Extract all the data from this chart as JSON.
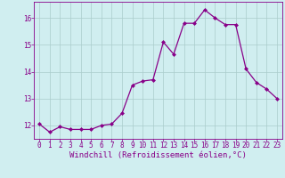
{
  "x": [
    0,
    1,
    2,
    3,
    4,
    5,
    6,
    7,
    8,
    9,
    10,
    11,
    12,
    13,
    14,
    15,
    16,
    17,
    18,
    19,
    20,
    21,
    22,
    23
  ],
  "y": [
    12.05,
    11.75,
    11.95,
    11.85,
    11.85,
    11.85,
    12.0,
    12.05,
    12.45,
    13.5,
    13.65,
    13.7,
    15.1,
    14.65,
    15.8,
    15.8,
    16.3,
    16.0,
    15.75,
    15.75,
    14.1,
    13.6,
    13.35,
    13.0
  ],
  "line_color": "#880088",
  "marker": "D",
  "marker_size": 2.0,
  "xlabel": "Windchill (Refroidissement éolien,°C)",
  "xlabel_fontsize": 6.5,
  "ylim": [
    11.5,
    16.6
  ],
  "yticks": [
    12,
    13,
    14,
    15,
    16
  ],
  "xticks": [
    0,
    1,
    2,
    3,
    4,
    5,
    6,
    7,
    8,
    9,
    10,
    11,
    12,
    13,
    14,
    15,
    16,
    17,
    18,
    19,
    20,
    21,
    22,
    23
  ],
  "tick_fontsize": 5.5,
  "bg_color": "#d0eef0",
  "grid_color": "#aacccc",
  "linewidth": 0.9
}
